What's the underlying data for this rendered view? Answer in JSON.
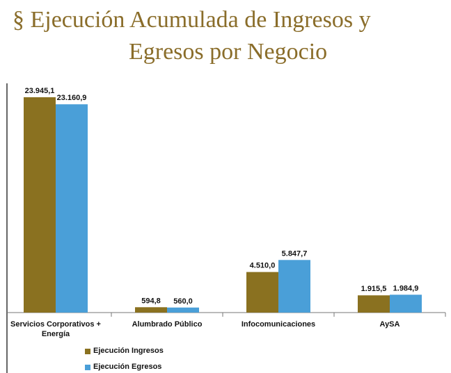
{
  "chart_data": {
    "type": "bar",
    "title_lines": [
      "§ Ejecución Acumulada de Ingresos y",
      "Egresos por Negocio"
    ],
    "categories": [
      "Servicios Corporativos + Energía",
      "Alumbrado Público",
      "Infocomunicaciones",
      "AySA"
    ],
    "series": [
      {
        "name": "Ejecución Ingresos",
        "color": "#8a7120",
        "values": [
          23945.1,
          594.8,
          4510.0,
          1915.5
        ],
        "value_labels": [
          "23.945,1",
          "594,8",
          "4.510,0",
          "1.915,5"
        ]
      },
      {
        "name": "Ejecución Egresos",
        "color": "#4a9fd8",
        "values": [
          23160.9,
          560.0,
          5847.7,
          1984.9
        ],
        "value_labels": [
          "23.160,9",
          "560,0",
          "5.847,7",
          "1.984,9"
        ]
      }
    ],
    "legend": "bottom-left"
  }
}
